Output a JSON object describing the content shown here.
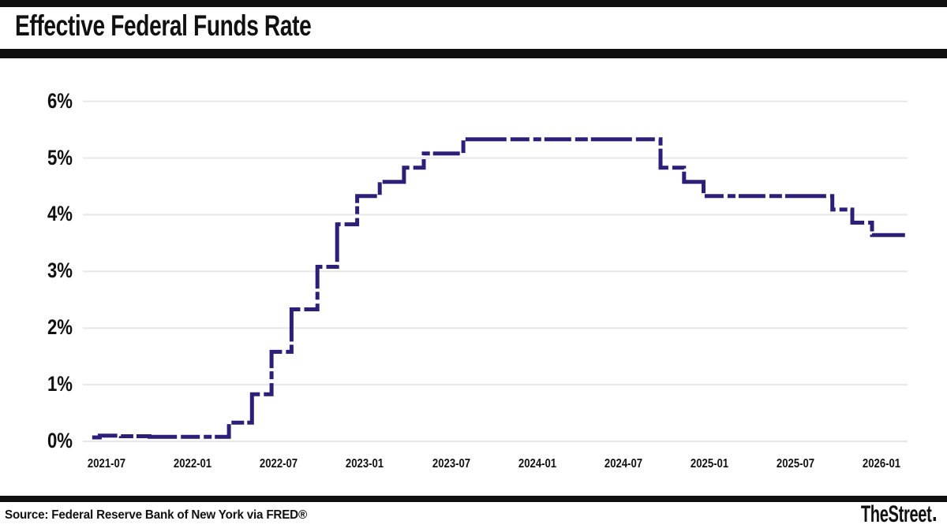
{
  "header": {
    "title": "Effective Federal Funds Rate"
  },
  "footer": {
    "source": "Source: Federal Reserve Bank of New York via FRED®",
    "brand": "TheStreet"
  },
  "colors": {
    "line": "#2d1e78",
    "grid": "#e7e7e7",
    "bars": "#101010",
    "text": "#111111",
    "background": "#ffffff"
  },
  "chart_data": {
    "type": "line",
    "step": true,
    "title": "Effective Federal Funds Rate",
    "xlabel": "",
    "ylabel": "",
    "unit": "percent",
    "grid": "horizontal",
    "legend": "none",
    "ylim": [
      0,
      6
    ],
    "x_range": [
      "2021-06-01",
      "2026-02-20"
    ],
    "y_ticks": [
      "0%",
      "1%",
      "2%",
      "3%",
      "4%",
      "5%",
      "6%"
    ],
    "y_tick_values": [
      0,
      1,
      2,
      3,
      4,
      5,
      6
    ],
    "x_ticks": [
      "2021-07",
      "2022-01",
      "2022-07",
      "2023-01",
      "2023-07",
      "2024-01",
      "2024-07",
      "2025-01",
      "2025-07",
      "2026-01"
    ],
    "series": [
      {
        "name": "Effective Federal Funds Rate",
        "points": [
          [
            "2021-06-01",
            0.07
          ],
          [
            "2021-06-17",
            0.1
          ],
          [
            "2021-08-01",
            0.09
          ],
          [
            "2021-10-01",
            0.08
          ],
          [
            "2022-03-17",
            0.33
          ],
          [
            "2022-05-05",
            0.83
          ],
          [
            "2022-06-16",
            1.58
          ],
          [
            "2022-07-28",
            2.33
          ],
          [
            "2022-09-22",
            3.08
          ],
          [
            "2022-11-03",
            3.83
          ],
          [
            "2022-12-15",
            4.33
          ],
          [
            "2023-02-02",
            4.58
          ],
          [
            "2023-03-23",
            4.83
          ],
          [
            "2023-05-04",
            5.08
          ],
          [
            "2023-07-27",
            5.33
          ],
          [
            "2024-09-19",
            4.83
          ],
          [
            "2024-11-08",
            4.58
          ],
          [
            "2024-12-19",
            4.33
          ],
          [
            "2025-09-18",
            4.09
          ],
          [
            "2025-10-30",
            3.86
          ],
          [
            "2025-12-11",
            3.64
          ],
          [
            "2026-02-20",
            3.64
          ]
        ]
      }
    ]
  }
}
